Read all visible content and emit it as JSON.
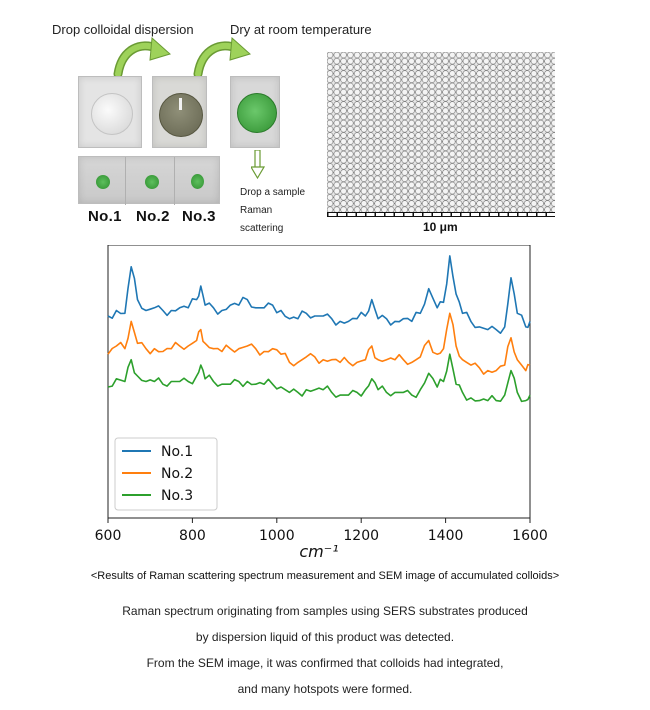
{
  "process": {
    "step1_label": "Drop colloidal dispersion",
    "step2_label": "Dry at room temperature",
    "drop_label": "Drop a sample",
    "raman_label": "Raman",
    "scattering_label": "scattering",
    "sample_labels": [
      "No.1",
      "No.2",
      "No.3"
    ],
    "icons": {
      "arrow": "curved-green-arrow-icon",
      "down": "down-arrow-icon"
    },
    "colors": {
      "arrow_green": "#8fc74a",
      "droplet_green": "#3a9a3a"
    }
  },
  "sem": {
    "scale_label": "10 μm"
  },
  "chart_data": {
    "type": "line",
    "title": "",
    "xlabel": "cm⁻¹",
    "ylabel": "",
    "xlim": [
      600,
      1600
    ],
    "ylim": [
      0,
      100
    ],
    "xticks": [
      600,
      800,
      1000,
      1200,
      1400,
      1600
    ],
    "legend_position": "lower-left",
    "series": [
      {
        "name": "No.1",
        "color": "#1f77b4",
        "x": [
          600,
          620,
          640,
          655,
          670,
          690,
          710,
          730,
          750,
          770,
          790,
          810,
          820,
          830,
          850,
          870,
          890,
          910,
          930,
          950,
          970,
          990,
          1010,
          1030,
          1050,
          1070,
          1090,
          1110,
          1130,
          1150,
          1170,
          1190,
          1210,
          1225,
          1240,
          1260,
          1280,
          1300,
          1320,
          1340,
          1360,
          1380,
          1395,
          1410,
          1425,
          1440,
          1460,
          1480,
          1500,
          1520,
          1540,
          1555,
          1570,
          1590,
          1600
        ],
        "values": [
          74,
          76,
          75,
          92,
          80,
          76,
          77,
          76,
          76,
          77,
          77,
          80,
          85,
          78,
          77,
          76,
          78,
          78,
          80,
          77,
          77,
          78,
          76,
          73,
          73,
          75,
          74,
          74,
          73,
          72,
          72,
          73,
          74,
          80,
          73,
          73,
          72,
          73,
          72,
          75,
          84,
          77,
          79,
          96,
          82,
          75,
          72,
          70,
          69,
          69,
          70,
          88,
          75,
          70,
          72
        ]
      },
      {
        "name": "No.2",
        "color": "#ff7f0e",
        "x": [
          600,
          620,
          640,
          655,
          670,
          690,
          710,
          730,
          750,
          770,
          790,
          810,
          820,
          830,
          850,
          870,
          890,
          910,
          930,
          950,
          970,
          990,
          1010,
          1030,
          1050,
          1070,
          1090,
          1110,
          1130,
          1150,
          1170,
          1190,
          1210,
          1225,
          1240,
          1260,
          1280,
          1300,
          1320,
          1340,
          1360,
          1380,
          1395,
          1410,
          1425,
          1440,
          1460,
          1480,
          1500,
          1520,
          1540,
          1555,
          1570,
          1590,
          1600
        ],
        "values": [
          60,
          63,
          62,
          72,
          64,
          62,
          62,
          61,
          62,
          63,
          63,
          65,
          69,
          64,
          62,
          61,
          62,
          62,
          63,
          62,
          61,
          62,
          60,
          57,
          57,
          59,
          59,
          58,
          58,
          57,
          57,
          57,
          58,
          63,
          58,
          58,
          58,
          58,
          57,
          59,
          65,
          60,
          62,
          75,
          63,
          58,
          56,
          55,
          54,
          54,
          56,
          66,
          58,
          54,
          56
        ]
      },
      {
        "name": "No.3",
        "color": "#2ca02c",
        "x": [
          600,
          620,
          640,
          655,
          670,
          690,
          710,
          730,
          750,
          770,
          790,
          810,
          820,
          830,
          850,
          870,
          890,
          910,
          930,
          950,
          970,
          990,
          1010,
          1030,
          1050,
          1070,
          1090,
          1110,
          1130,
          1150,
          1170,
          1190,
          1210,
          1225,
          1240,
          1260,
          1280,
          1300,
          1320,
          1340,
          1360,
          1380,
          1395,
          1410,
          1425,
          1440,
          1460,
          1480,
          1500,
          1520,
          1540,
          1555,
          1570,
          1590,
          1600
        ],
        "values": [
          48,
          51,
          50,
          58,
          52,
          50,
          50,
          49,
          50,
          50,
          50,
          52,
          56,
          51,
          50,
          49,
          49,
          50,
          50,
          49,
          49,
          49,
          48,
          46,
          46,
          47,
          47,
          47,
          46,
          45,
          45,
          46,
          47,
          51,
          47,
          46,
          46,
          46,
          45,
          47,
          53,
          48,
          50,
          60,
          49,
          46,
          44,
          43,
          43,
          43,
          45,
          54,
          46,
          43,
          45
        ]
      }
    ]
  },
  "caption": "<Results of Raman scattering spectrum measurement and SEM image of accumulated colloids>",
  "description": [
    "Raman spectrum originating from samples using SERS substrates produced",
    "by dispersion liquid of this product was detected.",
    "From the SEM image, it was confirmed that colloids had integrated,",
    "and many hotspots were formed."
  ]
}
